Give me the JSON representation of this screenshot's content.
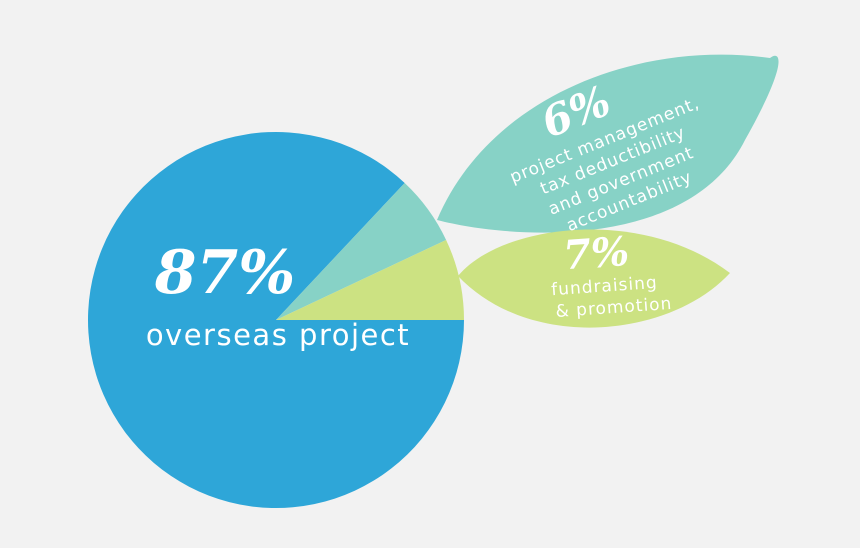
{
  "chart_data": {
    "type": "pie",
    "slices": [
      {
        "value": 87,
        "value_label": "87%",
        "label_lines": [
          "overseas project"
        ],
        "color": "#2ea6d8"
      },
      {
        "value": 6,
        "value_label": "6%",
        "label_lines": [
          "project management,",
          "tax deductibility",
          "and government",
          "accountability"
        ],
        "color": "#87d2c6"
      },
      {
        "value": 7,
        "value_label": "7%",
        "label_lines": [
          "fundraising",
          "& promotion"
        ],
        "color": "#cce282"
      }
    ]
  }
}
